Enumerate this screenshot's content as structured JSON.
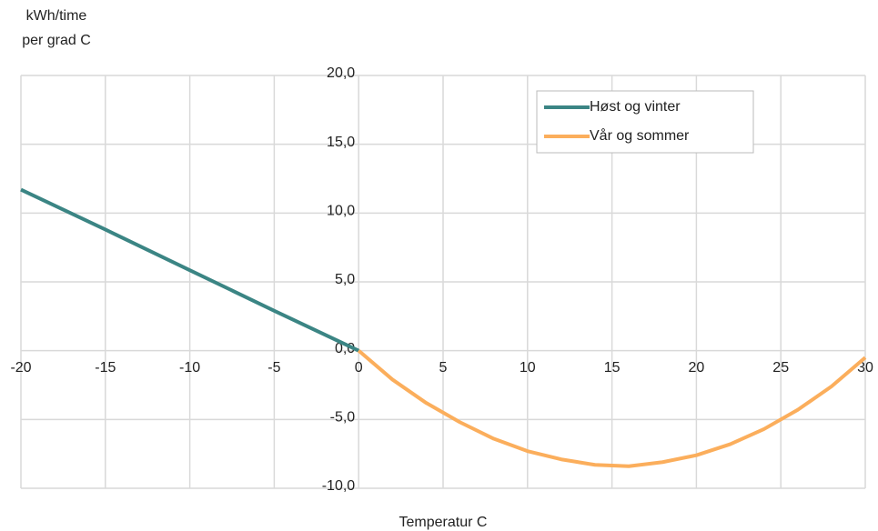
{
  "chart_data": {
    "type": "line",
    "ylabel": [
      "kWh/time",
      "per grad C"
    ],
    "xlabel": "Temperatur C",
    "series": [
      {
        "name": "Høst og vinter",
        "color": "#3b8584",
        "x": [
          -20,
          -15,
          -10,
          -5,
          0
        ],
        "values": [
          11.7,
          8.8,
          5.85,
          2.9,
          0
        ]
      },
      {
        "name": "Vår og sommer",
        "color": "#fbae5c",
        "x": [
          0,
          2,
          4,
          6,
          8,
          10,
          12,
          14,
          16,
          18,
          20,
          22,
          24,
          26,
          28,
          30
        ],
        "values": [
          0,
          -2.1,
          -3.8,
          -5.2,
          -6.4,
          -7.3,
          -7.9,
          -8.3,
          -8.4,
          -8.1,
          -7.6,
          -6.8,
          -5.7,
          -4.3,
          -2.6,
          -0.5
        ]
      }
    ],
    "xlim": [
      -20,
      30
    ],
    "xticks": [
      -20,
      -15,
      -10,
      -5,
      0,
      5,
      10,
      15,
      20,
      25,
      30
    ],
    "ylim": [
      -10,
      20
    ],
    "yticks": [
      {
        "value": -10,
        "label": "-10,0"
      },
      {
        "value": -5,
        "label": "-5,0"
      },
      {
        "value": 0,
        "label": "0,0"
      },
      {
        "value": 5,
        "label": "5,0"
      },
      {
        "value": 10,
        "label": "10,0"
      },
      {
        "value": 15,
        "label": "15,0"
      },
      {
        "value": 20,
        "label": "20,0"
      }
    ],
    "grid": true,
    "legend": "top-right"
  }
}
